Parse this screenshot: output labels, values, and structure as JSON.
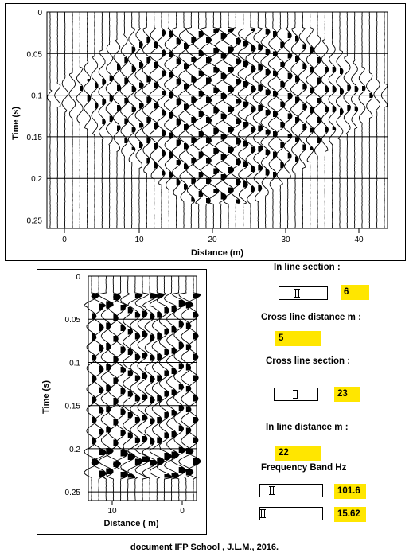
{
  "top_chart": {
    "xlabel": "Distance (m)",
    "ylabel": "Time (s)",
    "x_ticks": [
      "0",
      "10",
      "20",
      "30",
      "40"
    ],
    "y_ticks": [
      "0",
      "0.05",
      "0.1",
      "0.15",
      "0.2",
      "0.25"
    ]
  },
  "bottom_chart": {
    "xlabel": "Distance ( m)",
    "ylabel": "Time (s)",
    "x_ticks": [
      "10",
      "0"
    ],
    "y_ticks": [
      "0",
      "0.05",
      "0.1",
      "0.15",
      "0.2",
      "0.25"
    ]
  },
  "controls": {
    "in_line_section_label": "In line section :",
    "in_line_section_value": "6",
    "cross_line_distance_label": "Cross line distance m :",
    "cross_line_distance_value": "5",
    "cross_line_section_label": "Cross line section :",
    "cross_line_section_value": "23",
    "in_line_distance_label": "In line distance m :",
    "in_line_distance_value": "22",
    "frequency_band_label": "Frequency Band Hz",
    "freq_high_value": "101.6",
    "freq_low_value": "15.62"
  },
  "footer": "document IFP School , J.L.M., 2016."
}
